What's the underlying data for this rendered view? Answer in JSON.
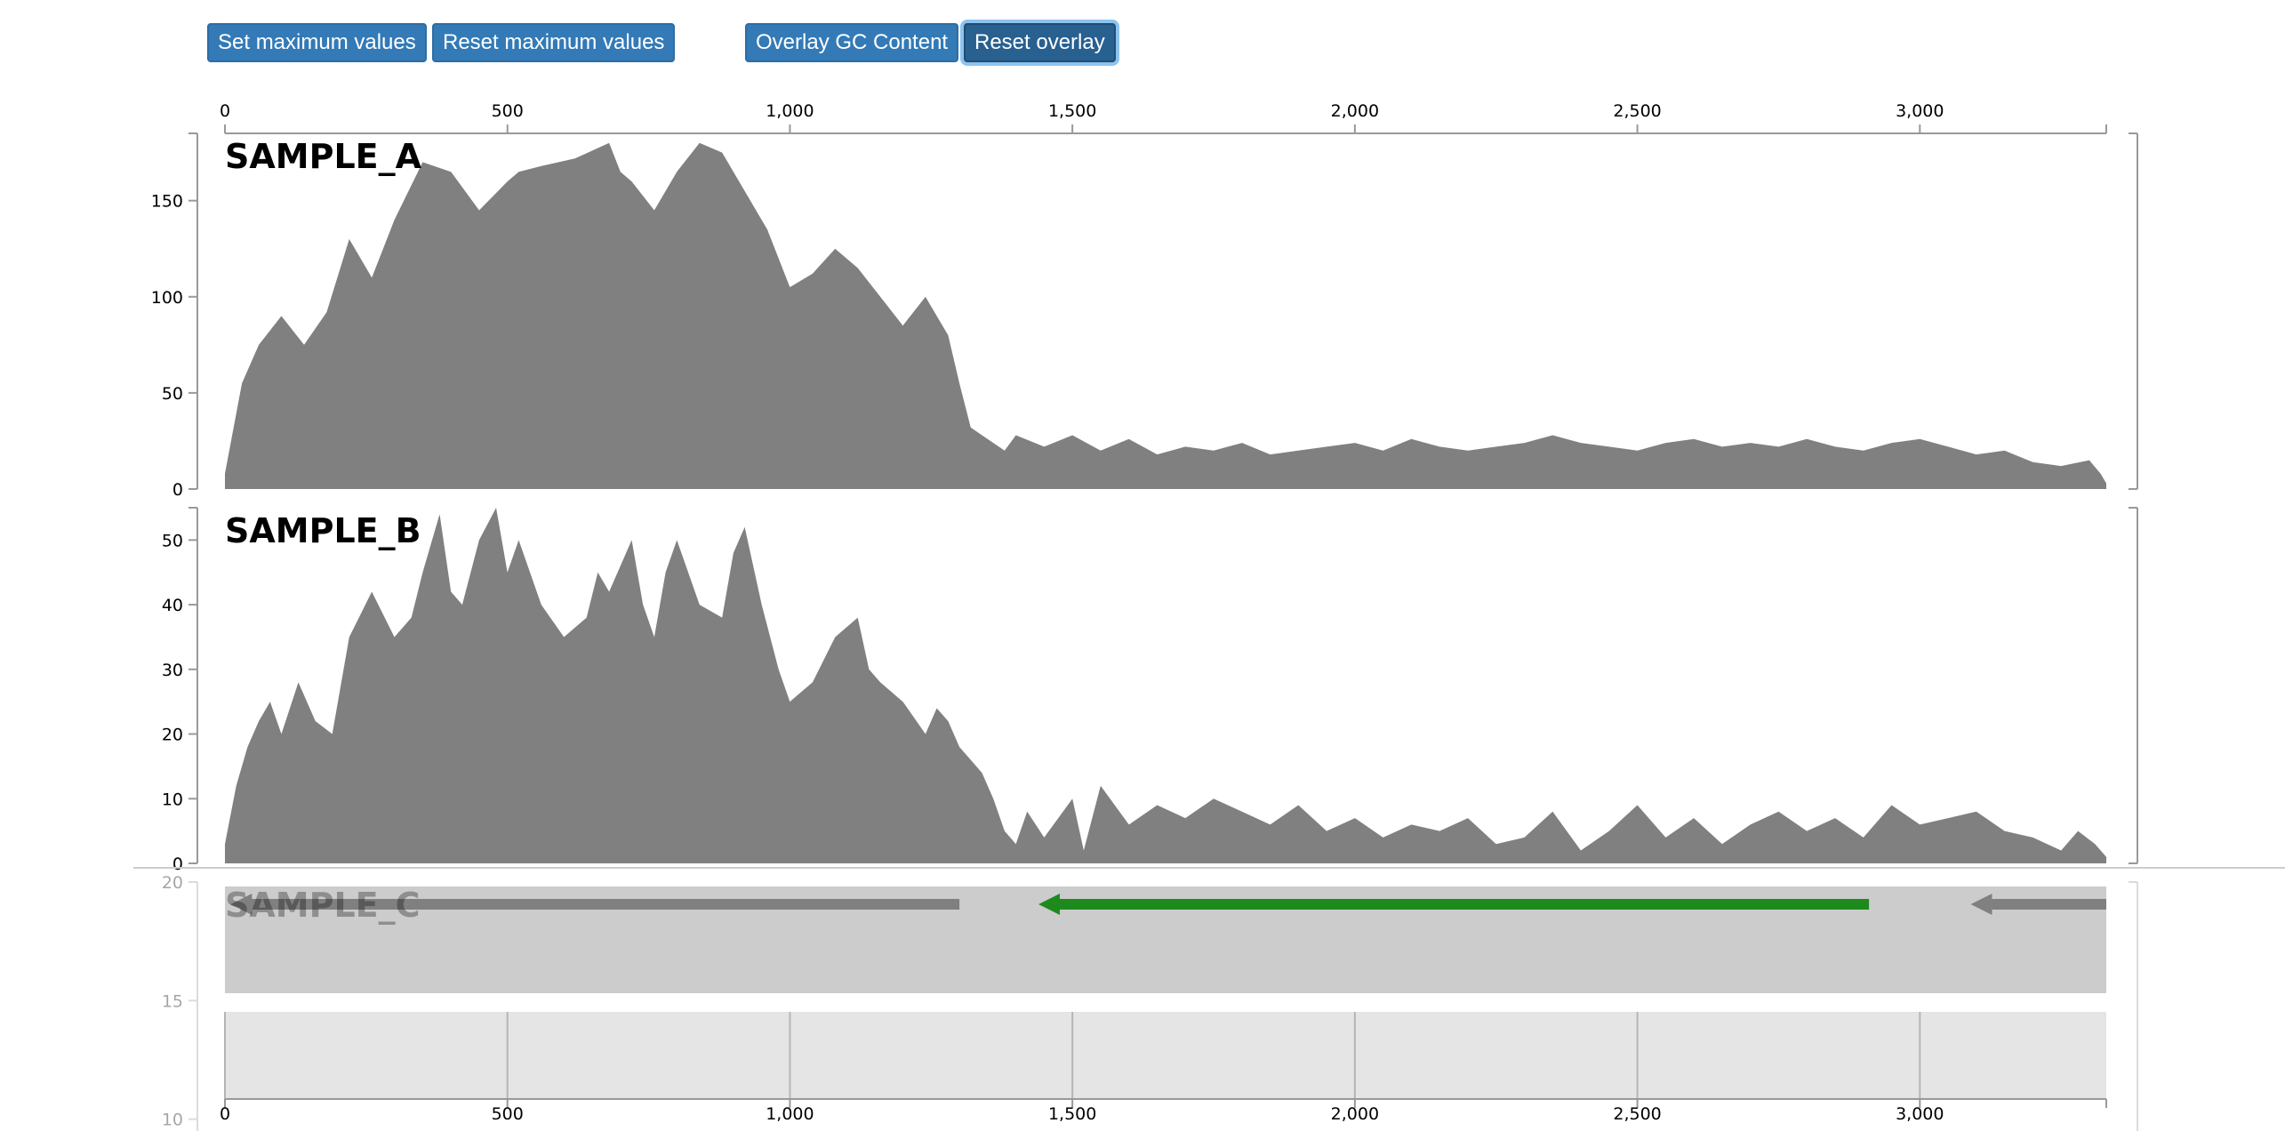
{
  "toolbar": {
    "set_max_label": "Set maximum values",
    "reset_max_label": "Reset maximum values",
    "overlay_gc_label": "Overlay GC Content",
    "reset_overlay_label": "Reset overlay"
  },
  "colors": {
    "coverage_fill": "#808080",
    "button_bg": "#337ab7",
    "feature_highlight": "#1e8a1e",
    "feature_default": "#808080",
    "track_bg": "#cccccc",
    "scale_bg": "#e5e5e5"
  },
  "chart_data": {
    "type": "area",
    "x_axis": {
      "range": [
        0,
        3330
      ],
      "ticks": [
        0,
        500,
        1000,
        1500,
        2000,
        2500,
        3000
      ],
      "tick_labels": [
        "0",
        "500",
        "1,000",
        "1,500",
        "2,000",
        "2,500",
        "3,000"
      ]
    },
    "samples": [
      {
        "name": "SAMPLE_A",
        "ylim": [
          0,
          185
        ],
        "y_ticks": [
          0,
          50,
          100,
          150
        ],
        "x": [
          0,
          30,
          60,
          100,
          140,
          180,
          220,
          260,
          300,
          350,
          400,
          450,
          500,
          520,
          560,
          620,
          680,
          700,
          720,
          760,
          800,
          840,
          880,
          900,
          920,
          960,
          1000,
          1040,
          1080,
          1120,
          1160,
          1200,
          1240,
          1260,
          1280,
          1300,
          1320,
          1340,
          1360,
          1380,
          1400,
          1450,
          1500,
          1550,
          1600,
          1650,
          1700,
          1750,
          1800,
          1850,
          1900,
          1950,
          2000,
          2050,
          2100,
          2150,
          2200,
          2250,
          2300,
          2350,
          2400,
          2450,
          2500,
          2550,
          2600,
          2650,
          2700,
          2750,
          2800,
          2850,
          2900,
          2950,
          3000,
          3050,
          3100,
          3150,
          3200,
          3250,
          3300,
          3320,
          3330
        ],
        "values": [
          8,
          55,
          75,
          90,
          75,
          92,
          130,
          110,
          140,
          170,
          165,
          145,
          160,
          165,
          168,
          172,
          180,
          165,
          160,
          145,
          165,
          180,
          175,
          165,
          155,
          135,
          105,
          112,
          125,
          115,
          100,
          85,
          100,
          90,
          80,
          55,
          32,
          28,
          24,
          20,
          28,
          22,
          28,
          20,
          26,
          18,
          22,
          20,
          24,
          18,
          20,
          22,
          24,
          20,
          26,
          22,
          20,
          22,
          24,
          28,
          24,
          22,
          20,
          24,
          26,
          22,
          24,
          22,
          26,
          22,
          20,
          24,
          26,
          22,
          18,
          20,
          14,
          12,
          15,
          8,
          3
        ]
      },
      {
        "name": "SAMPLE_B",
        "ylim": [
          0,
          55
        ],
        "y_ticks": [
          0,
          10,
          20,
          30,
          40,
          50
        ],
        "x": [
          0,
          20,
          40,
          60,
          80,
          100,
          130,
          160,
          190,
          220,
          260,
          300,
          330,
          350,
          380,
          400,
          420,
          450,
          480,
          500,
          520,
          560,
          600,
          640,
          660,
          680,
          700,
          720,
          740,
          760,
          780,
          800,
          840,
          880,
          900,
          920,
          950,
          980,
          1000,
          1040,
          1080,
          1120,
          1140,
          1160,
          1200,
          1240,
          1260,
          1280,
          1300,
          1320,
          1340,
          1360,
          1380,
          1400,
          1420,
          1450,
          1500,
          1520,
          1550,
          1600,
          1650,
          1700,
          1750,
          1800,
          1850,
          1900,
          1950,
          2000,
          2050,
          2100,
          2150,
          2200,
          2250,
          2300,
          2350,
          2400,
          2450,
          2500,
          2550,
          2600,
          2650,
          2700,
          2750,
          2800,
          2850,
          2900,
          2950,
          3000,
          3050,
          3100,
          3150,
          3200,
          3250,
          3280,
          3310,
          3330
        ],
        "values": [
          3,
          12,
          18,
          22,
          25,
          20,
          28,
          22,
          20,
          35,
          42,
          35,
          38,
          45,
          54,
          42,
          40,
          50,
          55,
          45,
          50,
          40,
          35,
          38,
          45,
          42,
          46,
          50,
          40,
          35,
          45,
          50,
          40,
          38,
          48,
          52,
          40,
          30,
          25,
          28,
          35,
          38,
          30,
          28,
          25,
          20,
          24,
          22,
          18,
          16,
          14,
          10,
          5,
          3,
          8,
          4,
          10,
          2,
          12,
          6,
          9,
          7,
          10,
          8,
          6,
          9,
          5,
          7,
          4,
          6,
          5,
          7,
          3,
          4,
          8,
          2,
          5,
          9,
          4,
          7,
          3,
          6,
          8,
          5,
          7,
          4,
          9,
          6,
          7,
          8,
          5,
          4,
          2,
          5,
          3,
          1
        ]
      },
      {
        "name": "SAMPLE_C",
        "ylim": [
          5,
          20
        ],
        "y_ticks": [
          10,
          15,
          20
        ]
      }
    ],
    "features": [
      {
        "start": 10,
        "end": 1300,
        "strand": "-",
        "highlight": false
      },
      {
        "start": 1440,
        "end": 2910,
        "strand": "-",
        "highlight": true
      },
      {
        "start": 3090,
        "end": 3330,
        "strand": "-",
        "highlight": false
      }
    ]
  }
}
